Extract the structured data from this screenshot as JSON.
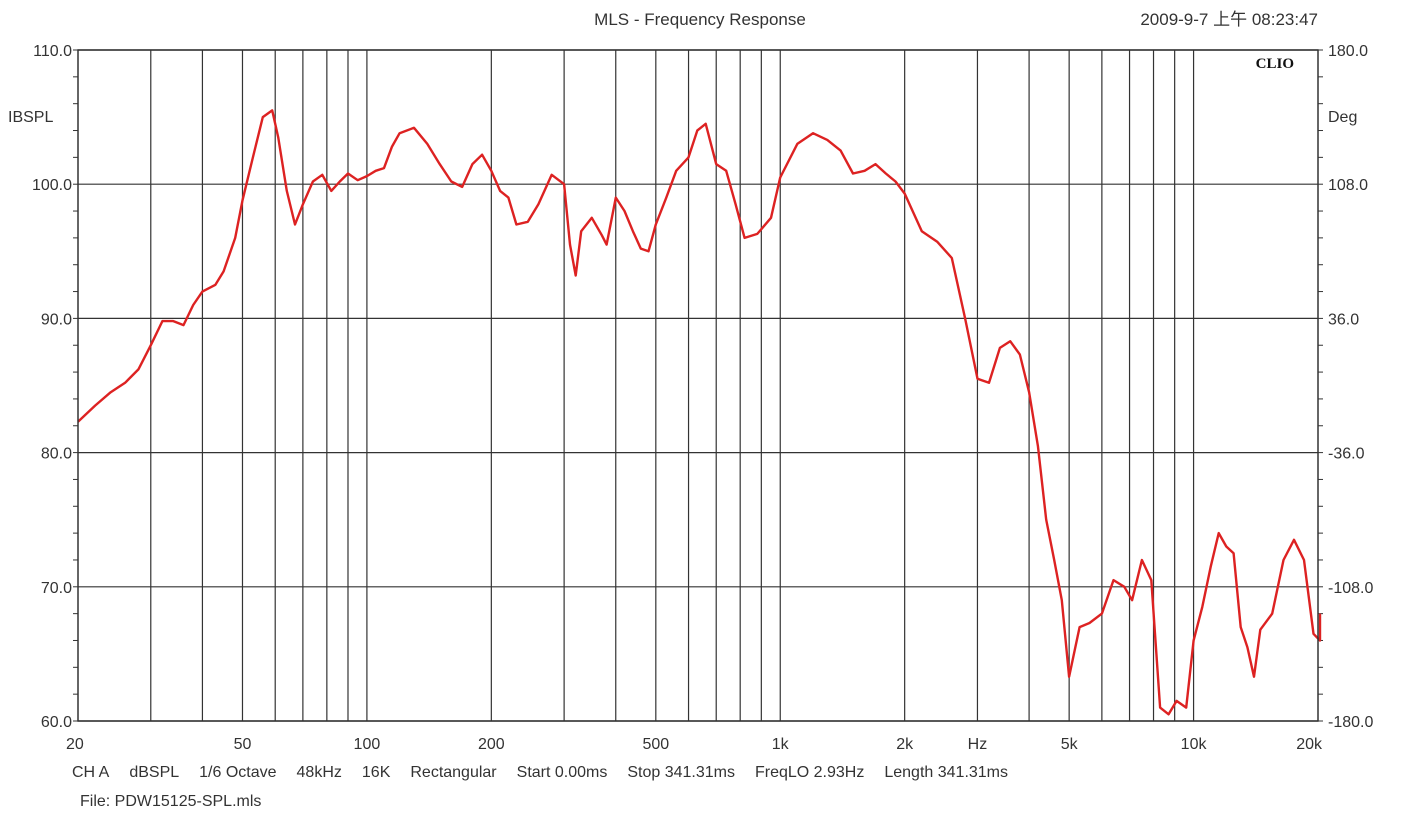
{
  "chart_data": {
    "type": "line",
    "title": "MLS - Frequency Response",
    "timestamp": "2009-9-7 上午 08:23:47",
    "brand": "CLIO",
    "ylabel_left": "IBSPL",
    "ylabel_right": "Deg",
    "x_scale": "log",
    "xlim": [
      20,
      20000
    ],
    "ylim": [
      60,
      110
    ],
    "ylim_right": [
      -180,
      180
    ],
    "grid": true,
    "y_ticks": [
      60,
      70,
      80,
      90,
      100,
      110
    ],
    "y_tick_labels": [
      "60.0",
      "70.0",
      "80.0",
      "90.0",
      "100.0",
      "110.0"
    ],
    "y_right_ticks": [
      -180,
      -108,
      -36,
      36,
      108,
      180
    ],
    "y_right_tick_labels": [
      "-180.0",
      "-108.0",
      "-36.0",
      "36.0",
      "108.0",
      "180.0"
    ],
    "x_tick_values": [
      20,
      50,
      100,
      200,
      500,
      1000,
      2000,
      5000,
      10000,
      20000
    ],
    "x_tick_labels": [
      "20",
      "50",
      "100",
      "200",
      "500",
      "1k",
      "2k",
      "5k",
      "10k",
      "20k"
    ],
    "x_unit_label": "Hz",
    "x_unit_position": 3000,
    "series": [
      {
        "color": "#dd2222",
        "x": [
          20,
          22,
          24,
          26,
          28,
          30,
          32,
          34,
          36,
          38,
          40,
          43,
          45,
          48,
          50,
          53,
          56,
          59,
          61,
          64,
          67,
          70,
          74,
          78,
          82,
          86,
          90,
          95,
          100,
          105,
          110,
          115,
          120,
          130,
          140,
          150,
          160,
          170,
          180,
          190,
          200,
          210,
          220,
          230,
          245,
          260,
          280,
          300,
          310,
          320,
          330,
          350,
          370,
          380,
          400,
          420,
          440,
          460,
          480,
          500,
          530,
          560,
          600,
          630,
          660,
          700,
          740,
          780,
          820,
          880,
          950,
          1000,
          1100,
          1200,
          1300,
          1400,
          1500,
          1600,
          1700,
          1800,
          1900,
          2000,
          2200,
          2400,
          2600,
          2800,
          3000,
          3200,
          3400,
          3600,
          3800,
          4000,
          4200,
          4400,
          4600,
          4800,
          5000,
          5300,
          5600,
          6000,
          6400,
          6800,
          7100,
          7500,
          7900,
          8300,
          8700,
          9100,
          9600,
          10000,
          10500,
          11000,
          11500,
          12000,
          12500,
          13000,
          13500,
          14000,
          14500,
          15500,
          16500,
          17500,
          18500,
          19500,
          20500,
          21500,
          22300
        ],
        "values": [
          82.3,
          83.5,
          84.5,
          85.2,
          86.2,
          88.0,
          89.8,
          89.8,
          89.5,
          91.0,
          92.0,
          92.5,
          93.5,
          96.0,
          98.8,
          102.0,
          105.0,
          105.5,
          103.5,
          99.5,
          97.0,
          98.5,
          100.2,
          100.7,
          99.5,
          100.2,
          100.8,
          100.3,
          100.6,
          101.0,
          101.2,
          102.8,
          103.8,
          104.2,
          103.0,
          101.5,
          100.2,
          99.8,
          101.5,
          102.2,
          101.0,
          99.5,
          99.0,
          97.0,
          97.2,
          98.5,
          100.7,
          100.0,
          95.5,
          93.2,
          96.5,
          97.5,
          96.2,
          95.5,
          99.0,
          98.0,
          96.5,
          95.2,
          95.0,
          97.0,
          99.0,
          101.0,
          102.0,
          104.0,
          104.5,
          101.5,
          101.0,
          98.5,
          96.0,
          96.3,
          97.5,
          100.5,
          103.0,
          103.8,
          103.3,
          102.5,
          100.8,
          101.0,
          101.5,
          100.8,
          100.2,
          99.3,
          96.5,
          95.7,
          94.5,
          90.0,
          85.5,
          85.2,
          87.8,
          88.3,
          87.3,
          84.5,
          80.5,
          75.0,
          72.0,
          69.0,
          63.3,
          67.0,
          67.3,
          68.0,
          70.5,
          70.0,
          69.0,
          72.0,
          70.5,
          61.0,
          60.5,
          61.5,
          61.0,
          66.0,
          68.5,
          71.5,
          74.0,
          73.0,
          72.5,
          67.0,
          65.5,
          63.3,
          66.8,
          68.0,
          72.0,
          73.5,
          72.0,
          66.5,
          66.0,
          67.0,
          68.0
        ]
      }
    ]
  },
  "footer": {
    "line1": [
      "CH A",
      "dBSPL",
      "1/6 Octave",
      "48kHz",
      "16K",
      "Rectangular",
      "Start 0.00ms",
      "Stop 341.31ms",
      "FreqLO 2.93Hz",
      "Length 341.31ms"
    ],
    "file_label": "File: PDW15125-SPL.mls"
  },
  "colors": {
    "curve": "#dd2222",
    "grid": "#333333",
    "frame": "#333333"
  }
}
